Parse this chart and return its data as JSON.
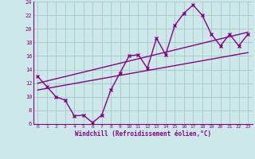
{
  "xlabel": "Windchill (Refroidissement éolien,°C)",
  "bg_color": "#cce8e8",
  "line_color": "#880088",
  "grid_color": "#aacccc",
  "xlim": [
    -0.5,
    23.5
  ],
  "ylim": [
    6,
    24
  ],
  "xticks": [
    0,
    1,
    2,
    3,
    4,
    5,
    6,
    7,
    8,
    9,
    10,
    11,
    12,
    13,
    14,
    15,
    16,
    17,
    18,
    19,
    20,
    21,
    22,
    23
  ],
  "yticks": [
    6,
    8,
    10,
    12,
    14,
    16,
    18,
    20,
    22,
    24
  ],
  "line1_x": [
    0,
    1,
    2,
    3,
    4,
    5,
    6,
    7,
    8,
    9,
    10,
    11,
    12,
    13,
    14,
    15,
    16,
    17,
    18,
    19,
    20,
    21,
    22,
    23
  ],
  "line1_y": [
    13.0,
    11.5,
    10.0,
    9.5,
    7.2,
    7.3,
    6.2,
    7.3,
    11.0,
    13.5,
    16.0,
    16.2,
    14.2,
    18.6,
    16.2,
    20.5,
    22.3,
    23.5,
    22.0,
    19.2,
    17.5,
    19.2,
    17.5,
    19.2
  ],
  "line2_x": [
    0,
    23
  ],
  "line2_y": [
    12.0,
    19.5
  ],
  "line3_x": [
    0,
    23
  ],
  "line3_y": [
    11.0,
    16.5
  ]
}
